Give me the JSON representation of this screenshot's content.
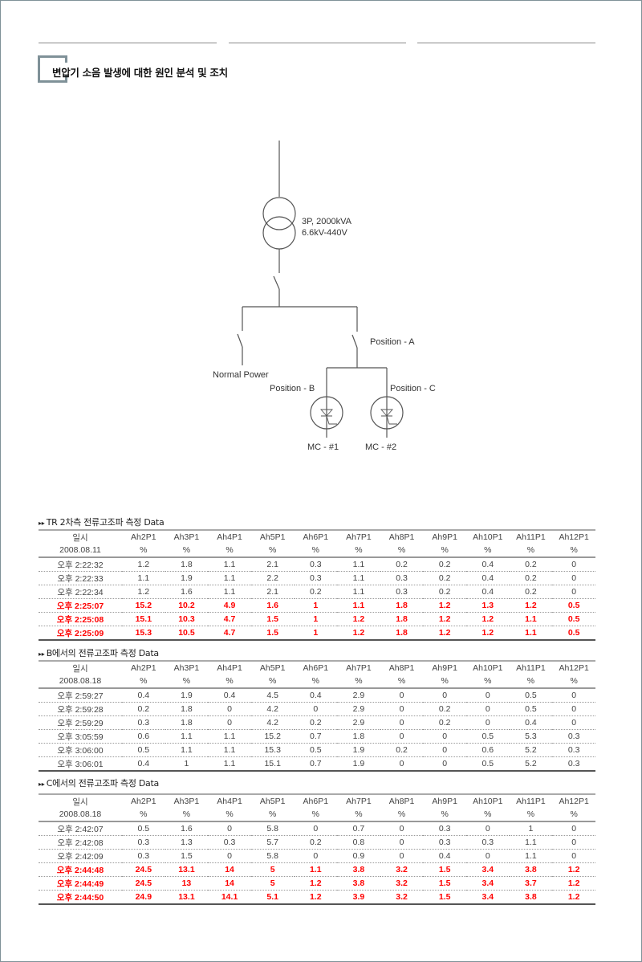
{
  "header": {
    "title": "변압기 소음 발생에 대한 원인 분석 및 조치"
  },
  "diagram": {
    "transformer_spec": [
      "3P, 2000kVA",
      "6.6kV-440V"
    ],
    "normal_power": "Normal Power",
    "position_a": "Position - A",
    "position_b": "Position - B",
    "position_c": "Position - C",
    "mc1": "MC - #1",
    "mc2": "MC - #2"
  },
  "colors": {
    "highlight": "#ff0000",
    "frame": "#7f9198"
  },
  "columns": [
    "Ah2P1",
    "Ah3P1",
    "Ah4P1",
    "Ah5P1",
    "Ah6P1",
    "Ah7P1",
    "Ah8P1",
    "Ah9P1",
    "Ah10P1",
    "Ah11P1",
    "Ah12P1"
  ],
  "tables": [
    {
      "title": "TR 2차측 전류고조파 측정 Data",
      "time_label": "일시",
      "date": "2008.08.11",
      "unit": "%",
      "rows": [
        {
          "time": "오후 2:22:32",
          "values": [
            "1.2",
            "1.8",
            "1.1",
            "2.1",
            "0.3",
            "1.1",
            "0.2",
            "0.2",
            "0.4",
            "0.2",
            "0"
          ],
          "highlight": false
        },
        {
          "time": "오후 2:22:33",
          "values": [
            "1.1",
            "1.9",
            "1.1",
            "2.2",
            "0.3",
            "1.1",
            "0.3",
            "0.2",
            "0.4",
            "0.2",
            "0"
          ],
          "highlight": false
        },
        {
          "time": "오후 2:22:34",
          "values": [
            "1.2",
            "1.6",
            "1.1",
            "2.1",
            "0.2",
            "1.1",
            "0.3",
            "0.2",
            "0.4",
            "0.2",
            "0"
          ],
          "highlight": false
        },
        {
          "time": "오후 2:25:07",
          "values": [
            "15.2",
            "10.2",
            "4.9",
            "1.6",
            "1",
            "1.1",
            "1.8",
            "1.2",
            "1.3",
            "1.2",
            "0.5"
          ],
          "highlight": true
        },
        {
          "time": "오후 2:25:08",
          "values": [
            "15.1",
            "10.3",
            "4.7",
            "1.5",
            "1",
            "1.2",
            "1.8",
            "1.2",
            "1.2",
            "1.1",
            "0.5"
          ],
          "highlight": true
        },
        {
          "time": "오후 2:25:09",
          "values": [
            "15.3",
            "10.5",
            "4.7",
            "1.5",
            "1",
            "1.2",
            "1.8",
            "1.2",
            "1.2",
            "1.1",
            "0.5"
          ],
          "highlight": true
        }
      ]
    },
    {
      "title": "B에서의 전류고조파 측정 Data",
      "time_label": "일시",
      "date": "2008.08.18",
      "unit": "%",
      "rows": [
        {
          "time": "오후 2:59:27",
          "values": [
            "0.4",
            "1.9",
            "0.4",
            "4.5",
            "0.4",
            "2.9",
            "0",
            "0",
            "0",
            "0.5",
            "0"
          ],
          "highlight": false
        },
        {
          "time": "오후 2:59:28",
          "values": [
            "0.2",
            "1.8",
            "0",
            "4.2",
            "0",
            "2.9",
            "0",
            "0.2",
            "0",
            "0.5",
            "0"
          ],
          "highlight": false
        },
        {
          "time": "오후 2:59:29",
          "values": [
            "0.3",
            "1.8",
            "0",
            "4.2",
            "0.2",
            "2.9",
            "0",
            "0.2",
            "0",
            "0.4",
            "0"
          ],
          "highlight": false
        },
        {
          "time": "오후 3:05:59",
          "values": [
            "0.6",
            "1.1",
            "1.1",
            "15.2",
            "0.7",
            "1.8",
            "0",
            "0",
            "0.5",
            "5.3",
            "0.3"
          ],
          "highlight": false
        },
        {
          "time": "오후 3:06:00",
          "values": [
            "0.5",
            "1.1",
            "1.1",
            "15.3",
            "0.5",
            "1.9",
            "0.2",
            "0",
            "0.6",
            "5.2",
            "0.3"
          ],
          "highlight": false
        },
        {
          "time": "오후 3:06:01",
          "values": [
            "0.4",
            "1",
            "1.1",
            "15.1",
            "0.7",
            "1.9",
            "0",
            "0",
            "0.5",
            "5.2",
            "0.3"
          ],
          "highlight": false
        }
      ]
    },
    {
      "title": "C에서의 전류고조파 측정 Data",
      "time_label": "일시",
      "date": "2008.08.18",
      "unit": "%",
      "rows": [
        {
          "time": "오후 2:42:07",
          "values": [
            "0.5",
            "1.6",
            "0",
            "5.8",
            "0",
            "0.7",
            "0",
            "0.3",
            "0",
            "1",
            "0"
          ],
          "highlight": false
        },
        {
          "time": "오후 2:42:08",
          "values": [
            "0.3",
            "1.3",
            "0.3",
            "5.7",
            "0.2",
            "0.8",
            "0",
            "0.3",
            "0.3",
            "1.1",
            "0"
          ],
          "highlight": false
        },
        {
          "time": "오후 2:42:09",
          "values": [
            "0.3",
            "1.5",
            "0",
            "5.8",
            "0",
            "0.9",
            "0",
            "0.4",
            "0",
            "1.1",
            "0"
          ],
          "highlight": false
        },
        {
          "time": "오후 2:44:48",
          "values": [
            "24.5",
            "13.1",
            "14",
            "5",
            "1.1",
            "3.8",
            "3.2",
            "1.5",
            "3.4",
            "3.8",
            "1.2"
          ],
          "highlight": true
        },
        {
          "time": "오후 2:44:49",
          "values": [
            "24.5",
            "13",
            "14",
            "5",
            "1.2",
            "3.8",
            "3.2",
            "1.5",
            "3.4",
            "3.7",
            "1.2"
          ],
          "highlight": true
        },
        {
          "time": "오후 2:44:50",
          "values": [
            "24.9",
            "13.1",
            "14.1",
            "5.1",
            "1.2",
            "3.9",
            "3.2",
            "1.5",
            "3.4",
            "3.8",
            "1.2"
          ],
          "highlight": true
        }
      ]
    }
  ]
}
